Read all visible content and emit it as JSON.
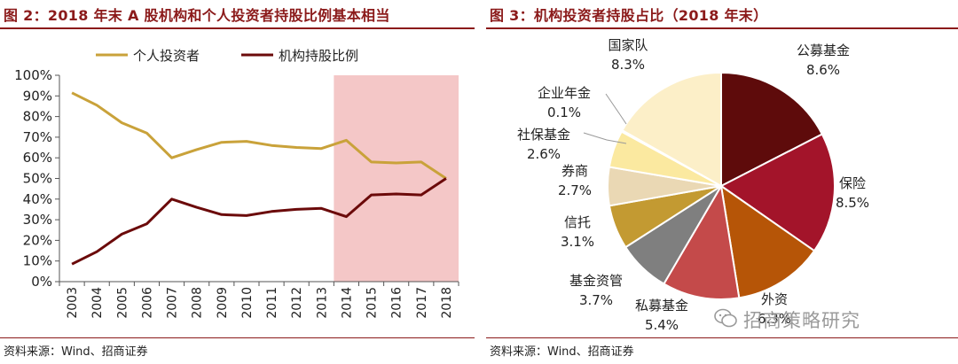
{
  "chart_data": [
    {
      "type": "line",
      "title": "图 2：2018 年末 A 股机构和个人投资者持股比例基本相当",
      "source": "资料来源：Wind、招商证券",
      "x": [
        "2003",
        "2004",
        "2005",
        "2006",
        "2007",
        "2008",
        "2009",
        "2010",
        "2011",
        "2012",
        "2013",
        "2014",
        "2015",
        "2016",
        "2017",
        "2018"
      ],
      "series": [
        {
          "name": "个人投资者",
          "color": "#c9a23a",
          "values": [
            91.5,
            85.5,
            77,
            72,
            60,
            64,
            67.5,
            68,
            66,
            65,
            64.5,
            68.5,
            58,
            57.5,
            58,
            50
          ]
        },
        {
          "name": "机构持股比例",
          "color": "#6b0a0a",
          "values": [
            8.5,
            14.5,
            23,
            28,
            40,
            36,
            32.5,
            32,
            34,
            35,
            35.5,
            31.5,
            42,
            42.5,
            42,
            50
          ]
        }
      ],
      "yticks": [
        "0%",
        "10%",
        "20%",
        "30%",
        "40%",
        "50%",
        "60%",
        "70%",
        "80%",
        "90%",
        "100%"
      ],
      "ylim": [
        0,
        100
      ],
      "highlight": {
        "from": "2014",
        "to": "2018",
        "color": "#f4c7c7"
      },
      "legend": "top"
    },
    {
      "type": "pie",
      "title": "图 3：机构投资者持股占比（2018 年末）",
      "source": "资料来源：Wind、招商证券",
      "slices": [
        {
          "label": "公募基金",
          "value_label": "8.6%",
          "value": 8.6,
          "color": "#5e0b0b"
        },
        {
          "label": "保险",
          "value_label": "8.5%",
          "value": 8.5,
          "color": "#a3142a"
        },
        {
          "label": "外资",
          "value_label": "6.3%",
          "value": 6.3,
          "color": "#b65507"
        },
        {
          "label": "私募基金",
          "value_label": "5.4%",
          "value": 5.4,
          "color": "#c44a4a"
        },
        {
          "label": "基金资管",
          "value_label": "3.7%",
          "value": 3.7,
          "color": "#7f7f7f"
        },
        {
          "label": "信托",
          "value_label": "3.1%",
          "value": 3.1,
          "color": "#c39a32"
        },
        {
          "label": "券商",
          "value_label": "2.7%",
          "value": 2.7,
          "color": "#ead8b4"
        },
        {
          "label": "社保基金",
          "value_label": "2.6%",
          "value": 2.6,
          "color": "#fbe9a0"
        },
        {
          "label": "企业年金",
          "value_label": "0.1%",
          "value": 0.1,
          "color": "#f3c8b4"
        },
        {
          "label": "国家队",
          "value_label": "8.3%",
          "value": 8.3,
          "color": "#fcefc8"
        }
      ]
    }
  ],
  "watermark": "招商策略研究"
}
